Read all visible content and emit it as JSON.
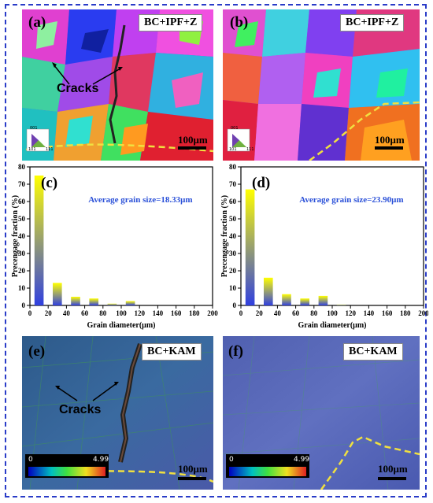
{
  "panels": {
    "a": {
      "label": "(a)",
      "tag": "BC+IPF+Z",
      "scale": "100μm",
      "crack_label": "Cracks",
      "legend_labels": [
        "001",
        "101",
        "111"
      ]
    },
    "b": {
      "label": "(b)",
      "tag": "BC+IPF+Z",
      "scale": "100μm",
      "legend_labels": [
        "001",
        "101",
        "111"
      ]
    },
    "e": {
      "label": "(e)",
      "tag": "BC+KAM",
      "scale": "100μm",
      "crack_label": "Cracks",
      "kam_min": "0",
      "kam_max": "4.99"
    },
    "f": {
      "label": "(f)",
      "tag": "BC+KAM",
      "scale": "100μm",
      "kam_min": "0",
      "kam_max": "4.99"
    }
  },
  "chart_data": [
    {
      "type": "bar",
      "panel_label": "(c)",
      "annotation": "Average grain size=18.33μm",
      "xlabel": "Grain diameter(μm)",
      "ylabel": "Precengage fraction (%)",
      "x": [
        10,
        30,
        50,
        70,
        90,
        110
      ],
      "values": [
        75,
        13,
        5,
        4,
        1,
        2.5
      ],
      "bar_width": 10,
      "xlim": [
        0,
        200
      ],
      "ylim": [
        0,
        80
      ],
      "xticks": [
        0,
        20,
        40,
        60,
        80,
        100,
        120,
        140,
        160,
        180,
        200
      ],
      "yticks": [
        0,
        10,
        20,
        30,
        40,
        50,
        60,
        70,
        80
      ],
      "colors": {
        "top": "#ffff00",
        "bottom": "#3040e0"
      }
    },
    {
      "type": "bar",
      "panel_label": "(d)",
      "annotation": "Average grain size=23.90μm",
      "xlabel": "Grain diameter(μm)",
      "ylabel": "Precengage fraction (%)",
      "x": [
        10,
        30,
        50,
        70,
        90,
        110
      ],
      "values": [
        67,
        16,
        6.5,
        4,
        5.5,
        0.5
      ],
      "bar_width": 10,
      "xlim": [
        0,
        200
      ],
      "ylim": [
        0,
        80
      ],
      "xticks": [
        0,
        20,
        40,
        60,
        80,
        100,
        120,
        140,
        160,
        180,
        200
      ],
      "yticks": [
        0,
        10,
        20,
        30,
        40,
        50,
        60,
        70,
        80
      ],
      "colors": {
        "top": "#ffff00",
        "bottom": "#3040e0"
      }
    }
  ]
}
